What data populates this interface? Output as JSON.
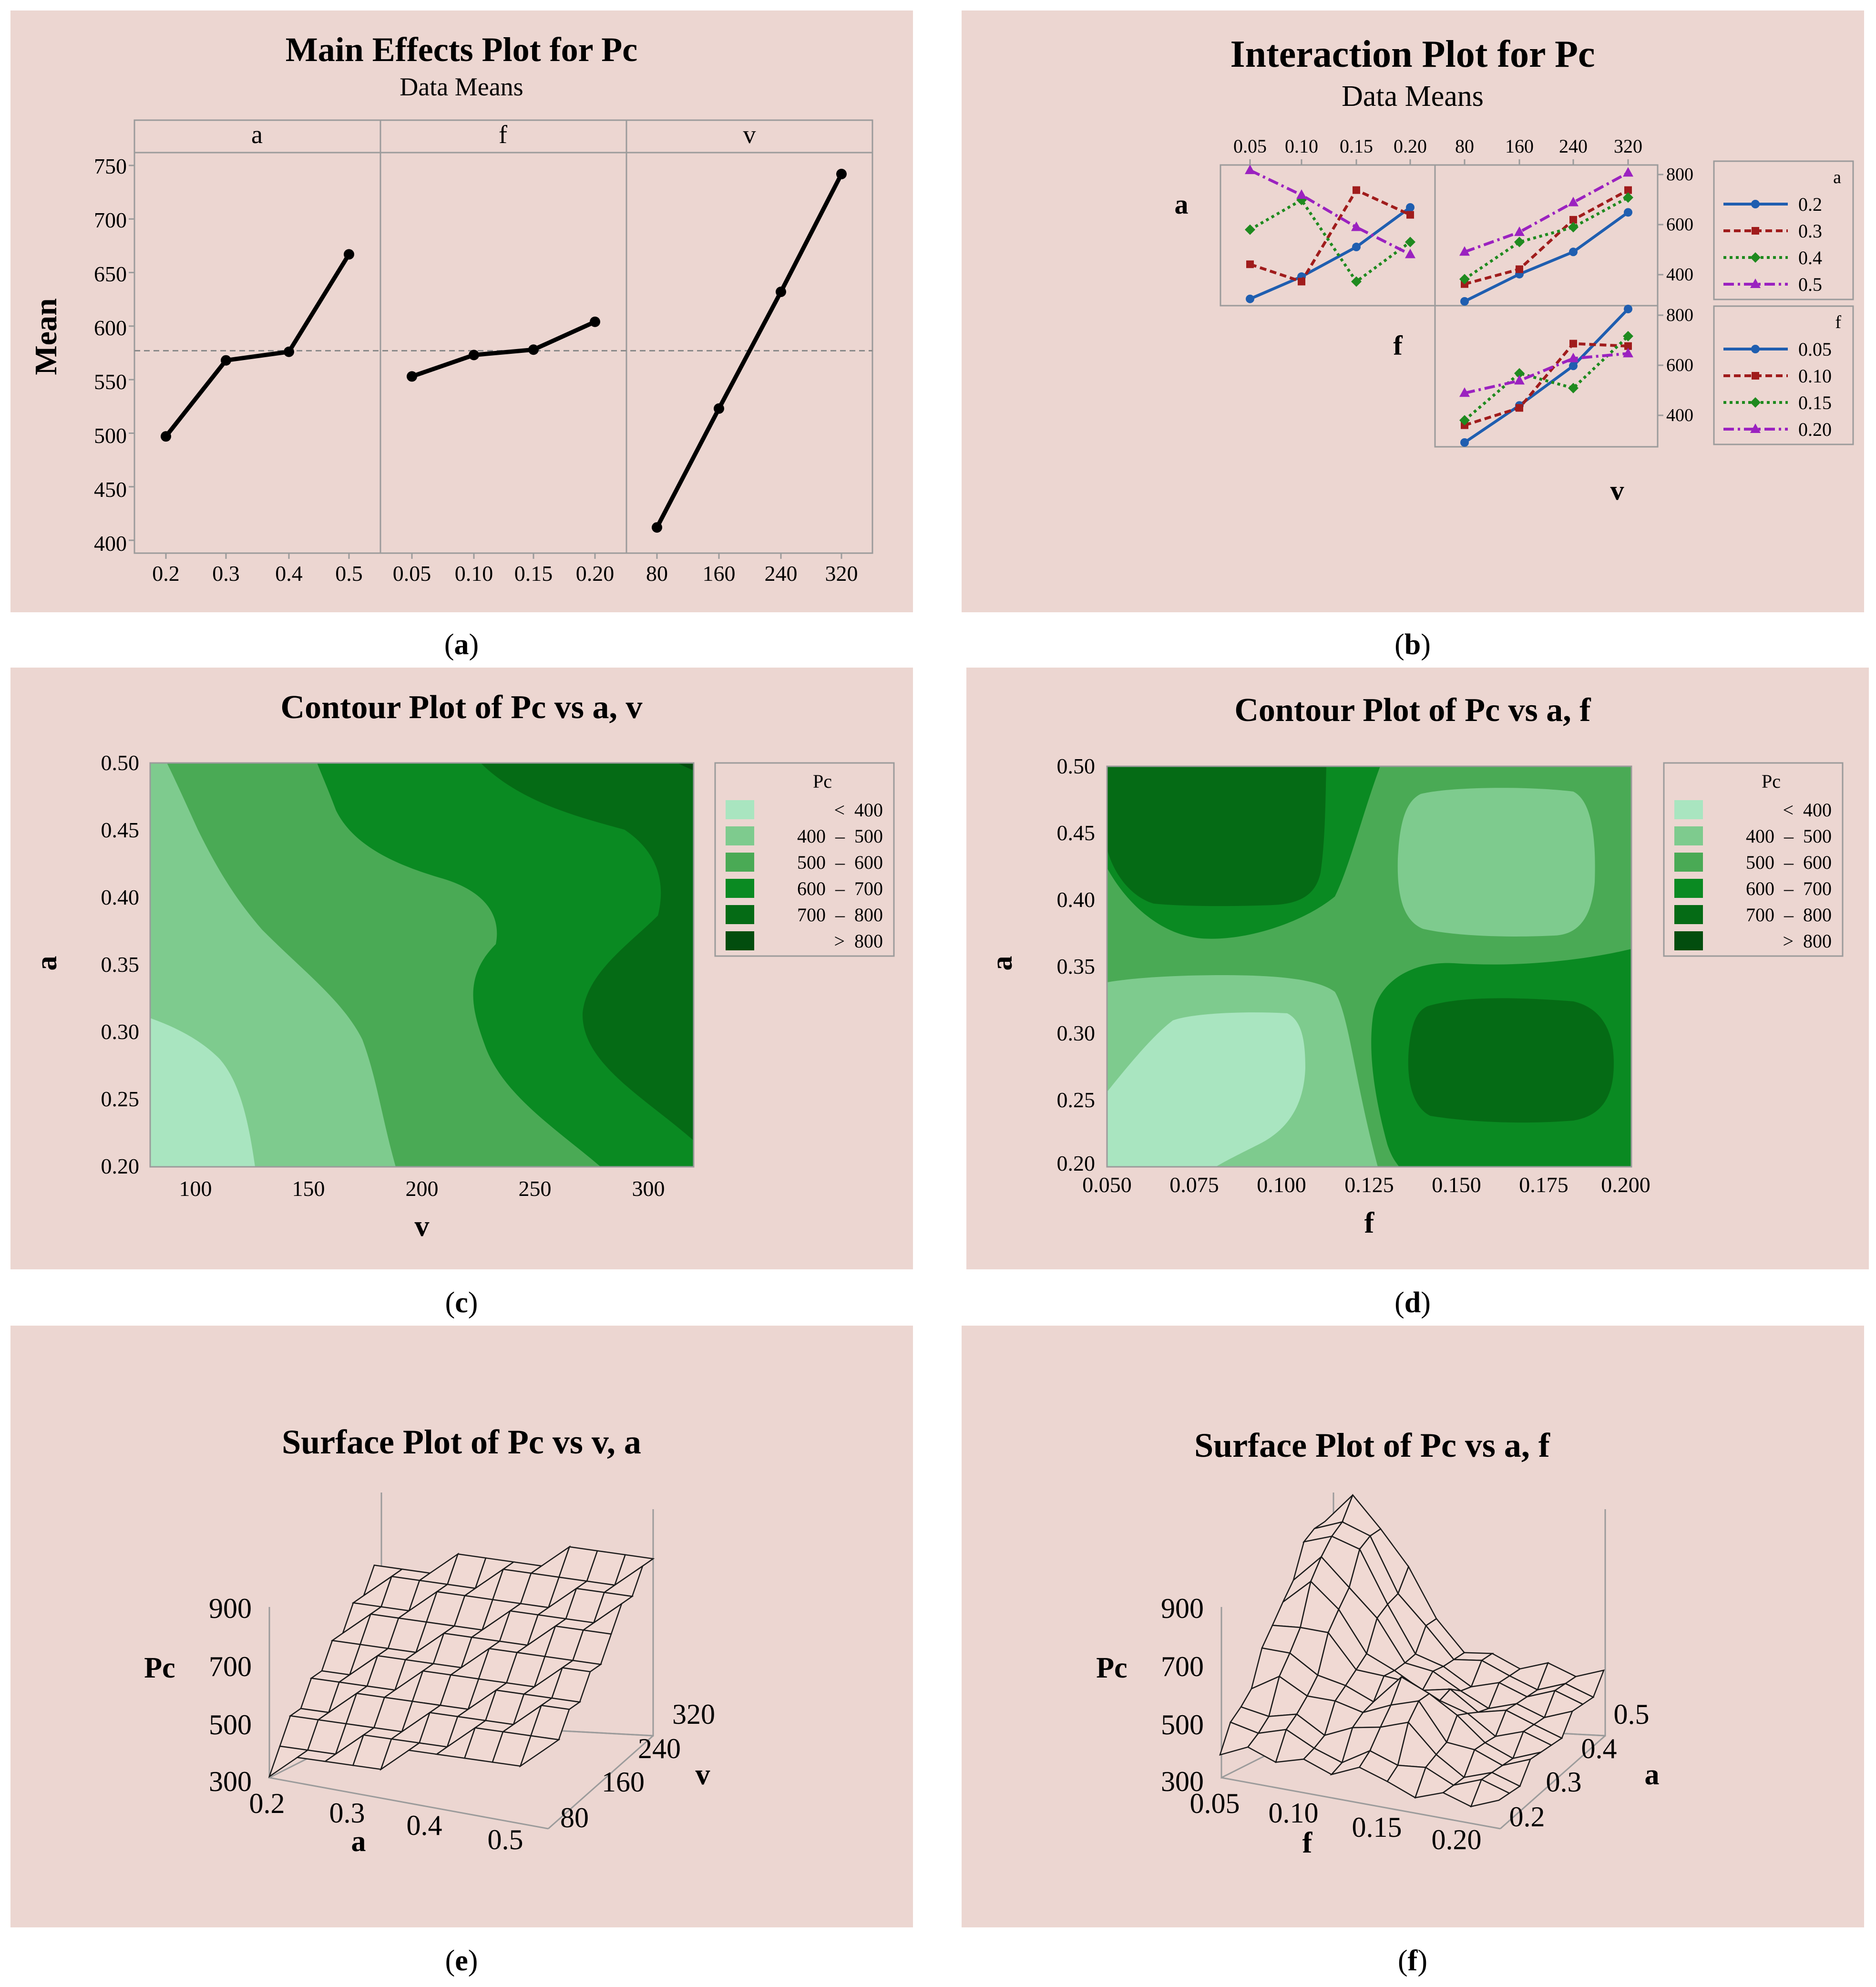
{
  "colors": {
    "panel_bg": "#ecd6d1",
    "grid_line": "#9b9b9b",
    "ref_line": "#8a8a8a",
    "series_a": [
      "#1f5eb0",
      "#a01c1c",
      "#1f8a1f",
      "#9b22c0"
    ],
    "contour": [
      "#a9e5c0",
      "#7ecb8e",
      "#4aaa55",
      "#0a8a22",
      "#056b15",
      "#024d0e"
    ],
    "surface_fill": "#f0d9d3"
  },
  "panels": {
    "a": {
      "caption": "a",
      "title": "Main Effects Plot for Pc",
      "subtitle": "Data Means",
      "ylabel": "Mean",
      "yticks": [
        "750",
        "700",
        "650",
        "600",
        "550",
        "500",
        "450",
        "400"
      ]
    },
    "b": {
      "caption": "b",
      "title": "Interaction Plot for Pc",
      "subtitle": "Data Means",
      "row_labels": [
        "a",
        "f",
        "v"
      ],
      "top_ticks_f": [
        "0.05",
        "0.10",
        "0.15",
        "0.20"
      ],
      "top_ticks_v": [
        "80",
        "160",
        "240",
        "320"
      ],
      "right_ticks": [
        "800",
        "600",
        "400"
      ],
      "legend_a_title": "a",
      "legend_a": [
        "0.2",
        "0.3",
        "0.4",
        "0.5"
      ],
      "legend_f_title": "f",
      "legend_f": [
        "0.05",
        "0.10",
        "0.15",
        "0.20"
      ]
    },
    "c": {
      "caption": "c",
      "title": "Contour Plot of Pc vs a, v",
      "xlabel": "v",
      "ylabel": "a",
      "xticks": [
        "100",
        "150",
        "200",
        "250",
        "300"
      ],
      "yticks": [
        "0.50",
        "0.45",
        "0.40",
        "0.35",
        "0.30",
        "0.25",
        "0.20"
      ]
    },
    "d": {
      "caption": "d",
      "title": "Contour Plot of Pc vs a, f",
      "xlabel": "f",
      "ylabel": "a",
      "xticks": [
        "0.050",
        "0.075",
        "0.100",
        "0.125",
        "0.150",
        "0.175",
        "0.200"
      ],
      "yticks": [
        "0.50",
        "0.45",
        "0.40",
        "0.35",
        "0.30",
        "0.25",
        "0.20"
      ]
    },
    "e": {
      "caption": "e",
      "title": "Surface Plot of Pc vs v, a",
      "zlabel": "Pc",
      "zticks": [
        "900",
        "700",
        "500",
        "300"
      ],
      "xlabel": "a",
      "xticks": [
        "0.2",
        "0.3",
        "0.4",
        "0.5"
      ],
      "ylabel": "v",
      "yticks": [
        "80",
        "160",
        "240",
        "320"
      ]
    },
    "f": {
      "caption": "f",
      "title": "Surface Plot of Pc vs a, f",
      "zlabel": "Pc",
      "zticks": [
        "900",
        "700",
        "500",
        "300"
      ],
      "xlabel": "f",
      "xticks": [
        "0.05",
        "0.10",
        "0.15",
        "0.20"
      ],
      "ylabel": "a",
      "yticks": [
        "0.2",
        "0.3",
        "0.4",
        "0.5"
      ]
    }
  },
  "legend": {
    "title": "Pc",
    "ranges": [
      "<  400",
      "400  –  500",
      "500  –  600",
      "600  –  700",
      "700  –  800",
      ">  800"
    ]
  },
  "chart_data": [
    {
      "type": "line",
      "id": "main_effects",
      "title": "Main Effects Plot for Pc",
      "subtitle": "Data Means",
      "ylabel": "Mean",
      "ylim": [
        388,
        762
      ],
      "grand_mean": 577,
      "facets": [
        {
          "factor": "a",
          "x": [
            "0.2",
            "0.3",
            "0.4",
            "0.5"
          ],
          "values": [
            497,
            568,
            576,
            667
          ]
        },
        {
          "factor": "f",
          "x": [
            "0.05",
            "0.10",
            "0.15",
            "0.20"
          ],
          "values": [
            553,
            573,
            578,
            604
          ]
        },
        {
          "factor": "v",
          "x": [
            "80",
            "160",
            "240",
            "320"
          ],
          "values": [
            412,
            523,
            632,
            742
          ]
        }
      ]
    },
    {
      "type": "line",
      "id": "interaction",
      "title": "Interaction Plot for Pc",
      "subtitle": "Data Means",
      "ylim": [
        320,
        860
      ],
      "panels": [
        {
          "row": "a",
          "xfactor": "f",
          "x": [
            "0.05",
            "0.10",
            "0.15",
            "0.20"
          ],
          "series": [
            {
              "name": "0.2",
              "values": [
                330,
                420,
                540,
                700
              ]
            },
            {
              "name": "0.3",
              "values": [
                470,
                400,
                770,
                670
              ]
            },
            {
              "name": "0.4",
              "values": [
                610,
                730,
                400,
                560
              ]
            },
            {
              "name": "0.5",
              "values": [
                850,
                750,
                620,
                510
              ]
            }
          ]
        },
        {
          "row": "a",
          "xfactor": "v",
          "x": [
            "80",
            "160",
            "240",
            "320"
          ],
          "series": [
            {
              "name": "0.2",
              "values": [
                320,
                430,
                520,
                680
              ]
            },
            {
              "name": "0.3",
              "values": [
                390,
                450,
                650,
                770
              ]
            },
            {
              "name": "0.4",
              "values": [
                410,
                560,
                620,
                740
              ]
            },
            {
              "name": "0.5",
              "values": [
                520,
                600,
                720,
                840
              ]
            }
          ]
        },
        {
          "row": "f",
          "xfactor": "v",
          "x": [
            "80",
            "160",
            "240",
            "320"
          ],
          "series": [
            {
              "name": "0.05",
              "values": [
                320,
                470,
                630,
                860
              ]
            },
            {
              "name": "0.10",
              "values": [
                390,
                460,
                720,
                710
              ]
            },
            {
              "name": "0.15",
              "values": [
                410,
                600,
                540,
                750
              ]
            },
            {
              "name": "0.20",
              "values": [
                520,
                570,
                660,
                680
              ]
            }
          ]
        }
      ]
    },
    {
      "type": "contour",
      "id": "contour_a_v",
      "title": "Contour Plot of Pc vs a, v",
      "xlabel": "v",
      "ylabel": "a",
      "xlim": [
        80,
        320
      ],
      "ylim": [
        0.2,
        0.5
      ],
      "levels": [
        "< 400",
        "400 – 500",
        "500 – 600",
        "600 – 700",
        "700 – 800",
        "> 800"
      ]
    },
    {
      "type": "contour",
      "id": "contour_a_f",
      "title": "Contour Plot of Pc vs a, f",
      "xlabel": "f",
      "ylabel": "a",
      "xlim": [
        0.05,
        0.2
      ],
      "ylim": [
        0.2,
        0.5
      ],
      "levels": [
        "< 400",
        "400 – 500",
        "500 – 600",
        "600 – 700",
        "700 – 800",
        "> 800"
      ]
    },
    {
      "type": "surface",
      "id": "surface_v_a",
      "title": "Surface Plot of Pc vs v, a",
      "zlabel": "Pc",
      "zlim": [
        300,
        900
      ],
      "xaxis": {
        "label": "a",
        "range": [
          0.2,
          0.5
        ]
      },
      "yaxis": {
        "label": "v",
        "range": [
          80,
          320
        ]
      },
      "grid_rows": 10,
      "grid_cols": 10
    },
    {
      "type": "surface",
      "id": "surface_a_f",
      "title": "Surface Plot of Pc vs a, f",
      "zlabel": "Pc",
      "zlim": [
        300,
        900
      ],
      "xaxis": {
        "label": "f",
        "range": [
          0.05,
          0.2
        ]
      },
      "yaxis": {
        "label": "a",
        "range": [
          0.2,
          0.5
        ]
      },
      "grid_rows": 10,
      "grid_cols": 10
    }
  ]
}
